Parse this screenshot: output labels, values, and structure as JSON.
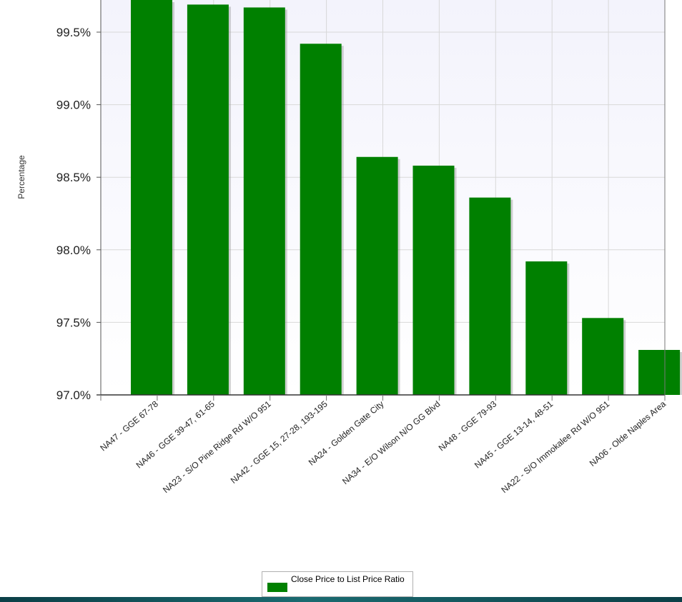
{
  "chart_data": {
    "type": "bar",
    "ylabel": "Percentage",
    "categories": [
      "NA47 - GGE 67-78",
      "NA46 - GGE 39-47, 61-65",
      "NA23 - S/O Pine Ridge Rd W/O 951",
      "NA42 - GGE 15, 27-28, 193-195",
      "NA24 - Golden Gate City",
      "NA34 - E/O Wilson N/O GG Blvd",
      "NA48 - GGE 79-93",
      "NA45 - GGE 13-14, 48-51",
      "NA22 - S/O Immokalee Rd W/O 951",
      "NA06 - Olde Naples Area"
    ],
    "series": [
      {
        "name": "Close Price to List Price Ratio",
        "color": "#008000",
        "values": [
          99.74,
          99.69,
          99.67,
          99.42,
          98.64,
          98.58,
          98.36,
          97.92,
          97.53,
          97.31
        ]
      }
    ],
    "y_ticks": [
      "97.0%",
      "97.5%",
      "98.0%",
      "98.5%",
      "99.0%",
      "99.5%"
    ],
    "y_tick_values": [
      97.0,
      97.5,
      98.0,
      98.5,
      99.0,
      99.5
    ],
    "ylim": [
      97.0,
      99.8
    ],
    "grid": true,
    "legend_position": "bottom-center",
    "colors": {
      "bar": "#008000",
      "plot_background_top": "#f3f3fc",
      "plot_background_bottom": "#ffffff",
      "grid": "#d8d8d8"
    }
  }
}
